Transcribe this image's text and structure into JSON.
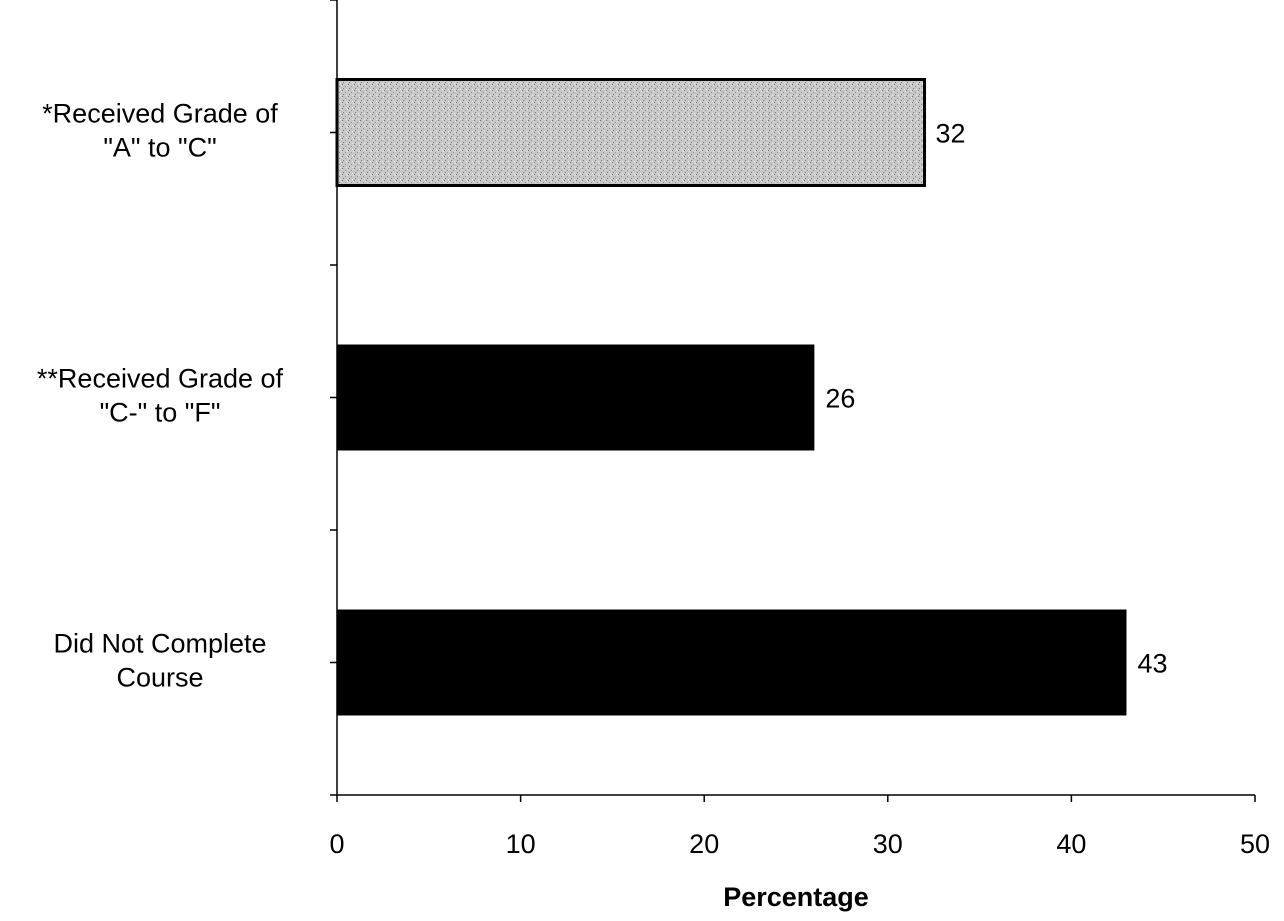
{
  "chart_data": {
    "type": "bar",
    "orientation": "horizontal",
    "categories": [
      "*Received Grade of \"A\" to \"C\"",
      "**Received Grade of \"C-\" to \"F\"",
      "Did Not Complete Course"
    ],
    "category_lines": [
      [
        "*Received Grade of",
        "\"A\" to \"C\""
      ],
      [
        "**Received Grade of",
        "\"C-\" to \"F\""
      ],
      [
        "Did Not Complete",
        "Course"
      ]
    ],
    "values": [
      32,
      26,
      43
    ],
    "data_labels": [
      "32",
      "26",
      "43"
    ],
    "bar_fills": [
      "stippled-gray",
      "black",
      "black"
    ],
    "colors": {
      "highlight_fill": "#c8c8c8",
      "highlight_stroke": "#000000",
      "bar_fill": "#000000"
    },
    "title": "",
    "xlabel": "Percentage",
    "ylabel": "",
    "xlim": [
      0,
      50
    ],
    "xticks": [
      0,
      10,
      20,
      30,
      40,
      50
    ],
    "xtick_labels": [
      "0",
      "10",
      "20",
      "30",
      "40",
      "50"
    ],
    "grid": false,
    "legend": "none"
  }
}
